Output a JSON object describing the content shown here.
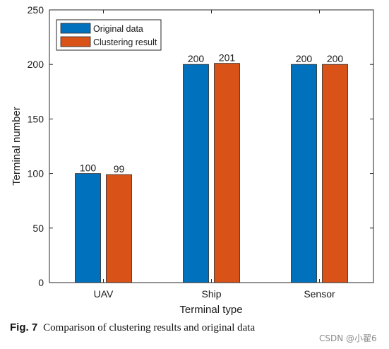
{
  "chart_data": {
    "type": "bar",
    "title": "",
    "xlabel": "Terminal type",
    "ylabel": "Terminal number",
    "categories": [
      "UAV",
      "Ship",
      "Sensor"
    ],
    "ylim": [
      0,
      250
    ],
    "yticks": [
      0,
      50,
      100,
      150,
      200,
      250
    ],
    "grid": false,
    "legend_position": "top-left",
    "series": [
      {
        "name": "Original data",
        "values": [
          100,
          200,
          200
        ],
        "color": "#0072BD"
      },
      {
        "name": "Clustering result",
        "values": [
          99,
          201,
          200
        ],
        "color": "#D95319"
      }
    ],
    "data_labels": true
  },
  "caption": {
    "label": "Fig. 7",
    "text": "Comparison of clustering results and original data"
  },
  "watermark": "CSDN @小翟6"
}
